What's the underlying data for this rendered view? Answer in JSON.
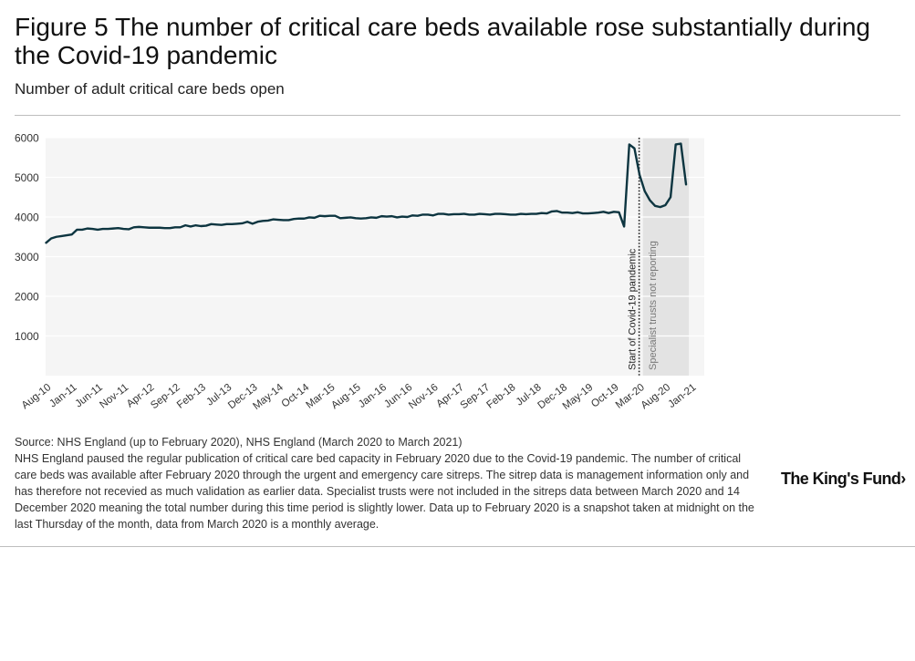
{
  "header": {
    "title": "Figure 5 The number of critical care beds available rose substantially during the Covid-19 pandemic",
    "subtitle": "Number of adult critical care beds open"
  },
  "chart_data": {
    "type": "line",
    "title": "Number of adult critical care beds open",
    "xlabel": "",
    "ylabel": "",
    "ylim": [
      0,
      6000
    ],
    "yticks": [
      1000,
      2000,
      3000,
      4000,
      5000,
      6000
    ],
    "xticks": [
      "Aug-10",
      "Jan-11",
      "Jun-11",
      "Nov-11",
      "Apr-12",
      "Sep-12",
      "Feb-13",
      "Jul-13",
      "Dec-13",
      "May-14",
      "Oct-14",
      "Mar-15",
      "Aug-15",
      "Jan-16",
      "Jun-16",
      "Nov-16",
      "Apr-17",
      "Sep-17",
      "Feb-18",
      "Jul-18",
      "Dec-18",
      "May-19",
      "Oct-19",
      "Mar-20",
      "Aug-20",
      "Jan-21"
    ],
    "x_start": "Aug-10",
    "x_end": "Mar-21",
    "series": [
      {
        "name": "Adult critical care beds open",
        "color": "#0d3540",
        "values": [
          3350,
          3460,
          3500,
          3520,
          3540,
          3560,
          3680,
          3680,
          3710,
          3700,
          3680,
          3700,
          3700,
          3710,
          3720,
          3700,
          3690,
          3740,
          3750,
          3740,
          3730,
          3730,
          3730,
          3720,
          3720,
          3740,
          3740,
          3790,
          3760,
          3790,
          3770,
          3780,
          3820,
          3810,
          3800,
          3820,
          3820,
          3830,
          3840,
          3880,
          3830,
          3880,
          3900,
          3910,
          3940,
          3930,
          3920,
          3920,
          3950,
          3960,
          3960,
          3990,
          3980,
          4030,
          4020,
          4030,
          4030,
          3970,
          3980,
          3990,
          3970,
          3960,
          3970,
          3990,
          3980,
          4020,
          4010,
          4020,
          3990,
          4010,
          4000,
          4040,
          4030,
          4060,
          4060,
          4040,
          4080,
          4080,
          4060,
          4070,
          4070,
          4080,
          4060,
          4060,
          4080,
          4070,
          4060,
          4080,
          4080,
          4070,
          4060,
          4060,
          4080,
          4070,
          4080,
          4080,
          4100,
          4090,
          4140,
          4150,
          4110,
          4110,
          4100,
          4120,
          4090,
          4090,
          4100,
          4110,
          4130,
          4100,
          4130,
          4120,
          3760,
          5830,
          5730,
          5060,
          4650,
          4420,
          4280,
          4250,
          4300,
          4500,
          5830,
          5850,
          4820
        ]
      }
    ],
    "annotations": [
      {
        "label": "Start of Covid-19 pandemic",
        "at": "Mar-20"
      },
      {
        "label": "Specialist trusts not reporting",
        "from": "Apr-20",
        "to": "Dec-20"
      }
    ]
  },
  "footer": {
    "source": "Source: NHS England (up to February 2020), NHS England (March 2020 to March 2021)",
    "note": "NHS England paused the regular publication of critical care bed capacity in February 2020 due to the Covid-19 pandemic. The number of critical care beds was available after February 2020 through the urgent and emergency care sitreps. The sitrep data is management information only and has therefore not recevied as much validation as earlier data. Specialist trusts were not included in the sitreps data between March 2020 and 14 December 2020 meaning the total number during this time period is slightly lower. Data up to February 2020 is a snapshot taken at midnight on the last Thursday of the month, data from March 2020 is a monthly average.",
    "logo_text": "The King's Fund",
    "logo_mark": "›"
  },
  "colors": {
    "line": "#0d3540",
    "plot_background": "#f5f5f5",
    "shade": "#e3e3e3",
    "grid": "#ffffff"
  }
}
